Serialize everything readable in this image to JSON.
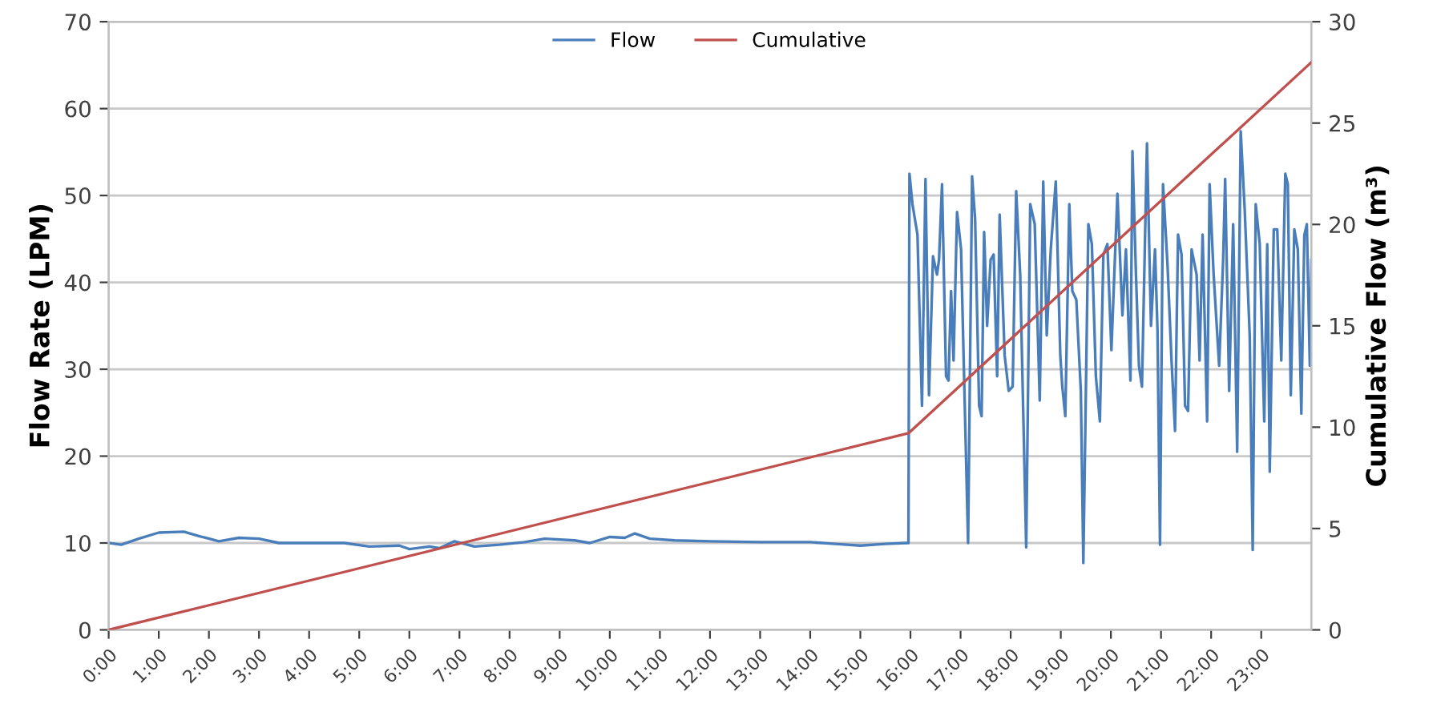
{
  "chart_data": {
    "type": "line",
    "xlim": [
      0,
      24
    ],
    "xticks": [
      {
        "value": 0,
        "label": "0:00"
      },
      {
        "value": 1,
        "label": "1:00"
      },
      {
        "value": 2,
        "label": "2:00"
      },
      {
        "value": 3,
        "label": "3:00"
      },
      {
        "value": 4,
        "label": "4:00"
      },
      {
        "value": 5,
        "label": "5:00"
      },
      {
        "value": 6,
        "label": "6:00"
      },
      {
        "value": 7,
        "label": "7:00"
      },
      {
        "value": 8,
        "label": "8:00"
      },
      {
        "value": 9,
        "label": "9:00"
      },
      {
        "value": 10,
        "label": "10:00"
      },
      {
        "value": 11,
        "label": "11:00"
      },
      {
        "value": 12,
        "label": "12:00"
      },
      {
        "value": 13,
        "label": "13:00"
      },
      {
        "value": 14,
        "label": "14:00"
      },
      {
        "value": 15,
        "label": "15:00"
      },
      {
        "value": 16,
        "label": "16:00"
      },
      {
        "value": 17,
        "label": "17:00"
      },
      {
        "value": 18,
        "label": "18:00"
      },
      {
        "value": 19,
        "label": "19:00"
      },
      {
        "value": 20,
        "label": "20:00"
      },
      {
        "value": 21,
        "label": "21:00"
      },
      {
        "value": 22,
        "label": "22:00"
      },
      {
        "value": 23,
        "label": "23:00"
      }
    ],
    "ylabel": "Flow Rate (LPM)",
    "y2label": "Cumulative Flow (m³)",
    "ylim": [
      0,
      70
    ],
    "yticks": [
      0,
      10,
      20,
      30,
      40,
      50,
      60,
      70
    ],
    "y2lim": [
      0,
      30
    ],
    "y2ticks": [
      0,
      5,
      10,
      15,
      20,
      25,
      30
    ],
    "grid": "y",
    "legend": "top",
    "marker": "none",
    "line_style": "solid",
    "series": [
      {
        "name": "Flow",
        "color": "#4a7ebb",
        "x": [
          0,
          0.25,
          0.6,
          1.0,
          1.5,
          1.8,
          2.2,
          2.6,
          3.0,
          3.4,
          4.0,
          4.7,
          5.2,
          5.8,
          6.0,
          6.4,
          6.6,
          6.9,
          7.3,
          7.8,
          8.3,
          8.7,
          9.3,
          9.6,
          10.0,
          10.3,
          10.5,
          10.8,
          11.3,
          12.0,
          13.0,
          14.0,
          14.5,
          15.0,
          15.5,
          15.9,
          15.96,
          15.98,
          16.04,
          16.14,
          16.23,
          16.3,
          16.37,
          16.45,
          16.53,
          16.57,
          16.63,
          16.71,
          16.76,
          16.81,
          16.86,
          16.93,
          17.01,
          17.06,
          17.15,
          17.23,
          17.29,
          17.37,
          17.42,
          17.47,
          17.53,
          17.6,
          17.66,
          17.73,
          17.78,
          17.88,
          17.96,
          18.04,
          18.11,
          18.19,
          18.31,
          18.39,
          18.48,
          18.58,
          18.65,
          18.72,
          18.8,
          18.9,
          18.99,
          19.03,
          19.09,
          19.17,
          19.23,
          19.31,
          19.4,
          19.45,
          19.55,
          19.62,
          19.7,
          19.78,
          19.85,
          19.93,
          20.01,
          20.13,
          20.23,
          20.3,
          20.39,
          20.43,
          20.5,
          20.56,
          20.62,
          20.72,
          20.8,
          20.88,
          20.93,
          20.98,
          21.04,
          21.13,
          21.21,
          21.28,
          21.34,
          21.41,
          21.48,
          21.54,
          21.61,
          21.71,
          21.77,
          21.83,
          21.92,
          21.97,
          22.05,
          22.16,
          22.24,
          22.28,
          22.36,
          22.44,
          22.52,
          22.59,
          22.67,
          22.77,
          22.83,
          22.89,
          22.97,
          23.06,
          23.12,
          23.17,
          23.25,
          23.32,
          23.4,
          23.48,
          23.53,
          23.59,
          23.66,
          23.73,
          23.8,
          23.86,
          23.91,
          23.97,
          24.0
        ],
        "values": [
          10,
          9.8,
          10.5,
          11.2,
          11.3,
          10.8,
          10.2,
          10.6,
          10.5,
          10.0,
          10.0,
          10.0,
          9.6,
          9.7,
          9.3,
          9.6,
          9.4,
          10.2,
          9.6,
          9.8,
          10.1,
          10.5,
          10.3,
          10.0,
          10.7,
          10.6,
          11.1,
          10.5,
          10.3,
          10.2,
          10.1,
          10.1,
          9.9,
          9.7,
          9.9,
          10,
          10,
          52.5,
          49,
          45.5,
          25.8,
          51.9,
          27,
          43,
          40.9,
          42.6,
          51.3,
          29.2,
          28.7,
          39,
          31,
          48.1,
          43.8,
          31.6,
          10,
          52.2,
          47.3,
          25.8,
          24.6,
          45.8,
          35,
          42.6,
          43.2,
          29.2,
          47.8,
          31.6,
          27.5,
          28,
          50.5,
          40.9,
          9.5,
          49,
          46.7,
          26.4,
          51.6,
          33.9,
          43.8,
          51.6,
          31.6,
          28,
          24.6,
          49,
          39,
          38,
          27.5,
          7.7,
          46.7,
          44.4,
          29.2,
          24,
          43.2,
          44.4,
          32.2,
          50.2,
          36.2,
          43.8,
          28.7,
          55.1,
          40.9,
          30.4,
          28,
          56,
          35,
          43.8,
          34.5,
          9.8,
          51.3,
          42,
          31,
          22.9,
          45.5,
          43.2,
          25.8,
          25.2,
          43.8,
          40.9,
          31,
          45.5,
          24,
          51.3,
          40.9,
          30.4,
          42.6,
          51.9,
          27.5,
          46.7,
          20.5,
          57.4,
          48.4,
          33.9,
          9.2,
          49,
          44.4,
          24,
          44.4,
          18.2,
          46.1,
          46.1,
          31,
          52.5,
          51.3,
          27,
          46.1,
          43.8,
          24.9,
          45.4,
          46.7,
          30.4,
          42.6
        ]
      },
      {
        "name": "Cumulative",
        "color": "#c0504d",
        "axis": "y2",
        "x": [
          0,
          15.96,
          24
        ],
        "values": [
          0,
          9.7,
          28.0
        ]
      }
    ]
  }
}
